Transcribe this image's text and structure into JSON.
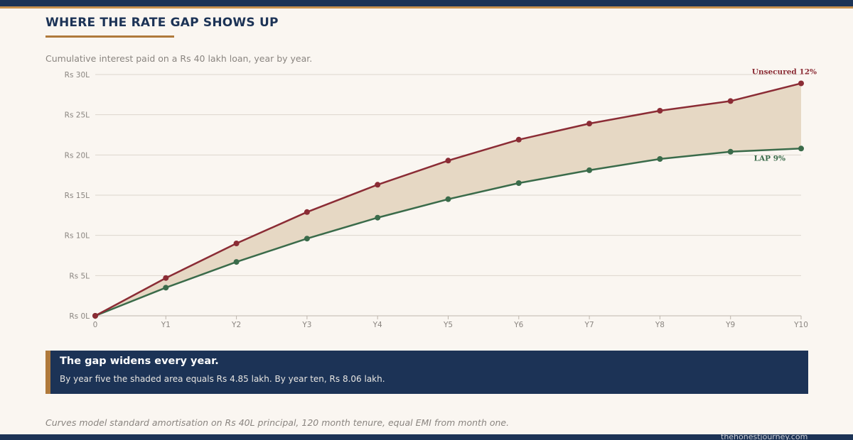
{
  "header": {
    "title": "WHERE THE RATE GAP SHOWS UP",
    "subtitle": "Cumulative interest paid on a Rs 40 lakh loan, year by year."
  },
  "colors": {
    "navy": "#1c3356",
    "gold": "#b07a3c",
    "unsecured": "#8b2c35",
    "lap": "#3a6b4a",
    "gap_fill": "#e6d8c4",
    "background": "#faf6f1"
  },
  "chart_data": {
    "type": "line",
    "categories": [
      "0",
      "Y1",
      "Y2",
      "Y3",
      "Y4",
      "Y5",
      "Y6",
      "Y7",
      "Y8",
      "Y9",
      "Y10"
    ],
    "series": [
      {
        "name": "Unsecured 12%",
        "values": [
          0,
          4.7,
          9.0,
          12.9,
          16.3,
          19.3,
          21.9,
          23.9,
          25.5,
          26.7,
          28.9
        ]
      },
      {
        "name": "LAP 9%",
        "values": [
          0,
          3.5,
          6.7,
          9.6,
          12.2,
          14.5,
          16.5,
          18.1,
          19.5,
          20.4,
          20.8
        ]
      }
    ],
    "y_ticks": [
      "Rs 0L",
      "Rs 5L",
      "Rs 10L",
      "Rs 15L",
      "Rs 20L",
      "Rs 25L",
      "Rs 30L"
    ],
    "ylim": [
      0,
      30
    ],
    "grid": true,
    "shaded_area_between_series": true,
    "legend": "inline labels at right end of lines"
  },
  "callout": {
    "heading": "The gap widens every year.",
    "body": "By year five the shaded area equals Rs 4.85 lakh. By year ten, Rs 8.06 lakh."
  },
  "footer": {
    "footnote": "Curves model standard amortisation on Rs 40L principal, 120 month tenure, equal EMI from month one.",
    "site": "thehonestjourney.com"
  }
}
